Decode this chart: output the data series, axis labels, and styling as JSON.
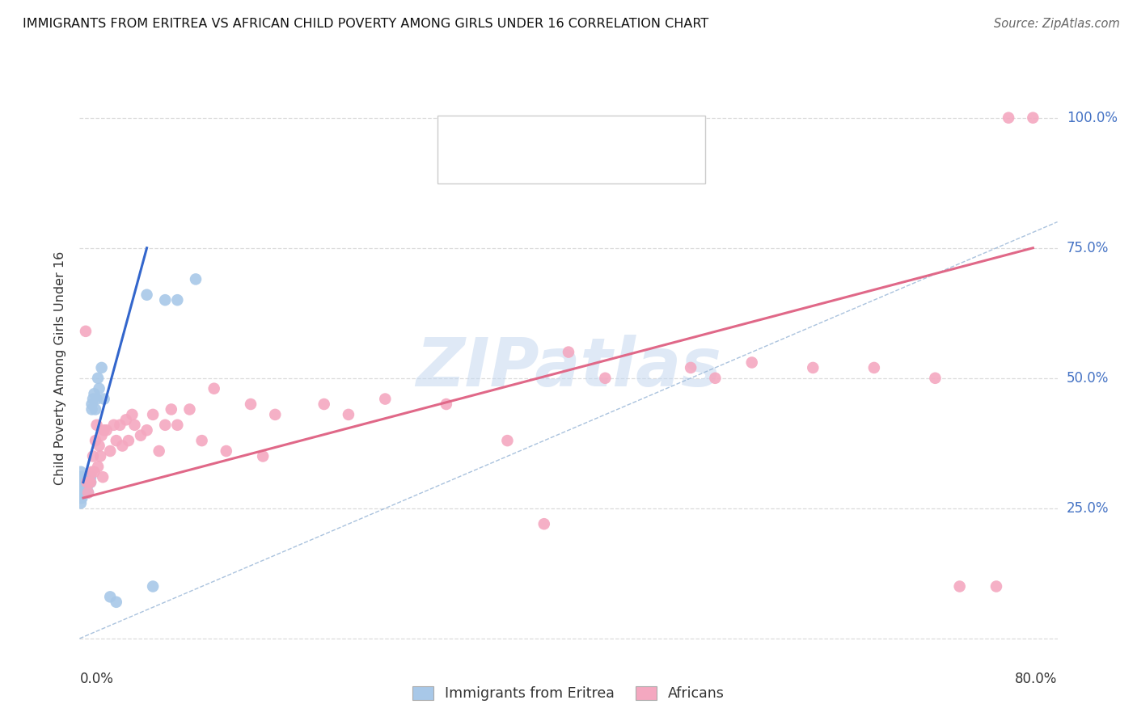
{
  "title": "IMMIGRANTS FROM ERITREA VS AFRICAN CHILD POVERTY AMONG GIRLS UNDER 16 CORRELATION CHART",
  "source": "Source: ZipAtlas.com",
  "ylabel": "Child Poverty Among Girls Under 16",
  "ytick_values": [
    0.0,
    0.25,
    0.5,
    0.75,
    1.0
  ],
  "ytick_labels": [
    "",
    "25.0%",
    "50.0%",
    "75.0%",
    "100.0%"
  ],
  "xlim": [
    0.0,
    0.8
  ],
  "ylim": [
    -0.02,
    1.06
  ],
  "color_blue": "#a8c8e8",
  "color_pink": "#f4a8c0",
  "color_blue_line": "#3366cc",
  "color_pink_line": "#e06888",
  "color_blue_tick": "#4472c4",
  "background": "#ffffff",
  "watermark_color": "#c5d8f0",
  "grid_color": "#d8d8d8",
  "ref_line_color": "#9bb8d8",
  "blue_x": [
    0.001,
    0.001,
    0.001,
    0.001,
    0.001,
    0.001,
    0.001,
    0.001,
    0.002,
    0.002,
    0.002,
    0.002,
    0.002,
    0.002,
    0.002,
    0.002,
    0.002,
    0.003,
    0.003,
    0.003,
    0.003,
    0.003,
    0.003,
    0.003,
    0.004,
    0.004,
    0.004,
    0.004,
    0.005,
    0.005,
    0.005,
    0.005,
    0.006,
    0.006,
    0.006,
    0.007,
    0.007,
    0.007,
    0.008,
    0.008,
    0.009,
    0.009,
    0.01,
    0.01,
    0.011,
    0.012,
    0.013,
    0.014,
    0.015,
    0.016,
    0.018,
    0.02,
    0.025,
    0.03,
    0.055,
    0.06,
    0.07,
    0.08,
    0.095
  ],
  "blue_y": [
    0.3,
    0.28,
    0.29,
    0.31,
    0.26,
    0.3,
    0.27,
    0.32,
    0.3,
    0.29,
    0.28,
    0.31,
    0.3,
    0.27,
    0.29,
    0.31,
    0.3,
    0.29,
    0.3,
    0.28,
    0.31,
    0.29,
    0.3,
    0.28,
    0.3,
    0.29,
    0.31,
    0.3,
    0.3,
    0.28,
    0.31,
    0.29,
    0.31,
    0.3,
    0.29,
    0.31,
    0.3,
    0.28,
    0.31,
    0.3,
    0.31,
    0.3,
    0.45,
    0.44,
    0.46,
    0.47,
    0.44,
    0.46,
    0.5,
    0.48,
    0.52,
    0.46,
    0.08,
    0.07,
    0.66,
    0.1,
    0.65,
    0.65,
    0.69
  ],
  "pink_x": [
    0.005,
    0.006,
    0.007,
    0.008,
    0.009,
    0.01,
    0.011,
    0.012,
    0.013,
    0.014,
    0.015,
    0.016,
    0.017,
    0.018,
    0.019,
    0.02,
    0.022,
    0.025,
    0.028,
    0.03,
    0.033,
    0.035,
    0.038,
    0.04,
    0.043,
    0.045,
    0.05,
    0.055,
    0.06,
    0.065,
    0.07,
    0.075,
    0.08,
    0.09,
    0.1,
    0.11,
    0.12,
    0.14,
    0.15,
    0.16,
    0.2,
    0.22,
    0.25,
    0.3,
    0.35,
    0.38,
    0.4,
    0.43,
    0.5,
    0.52,
    0.55,
    0.6,
    0.65,
    0.7,
    0.72,
    0.75,
    0.76,
    0.78
  ],
  "pink_y": [
    0.59,
    0.3,
    0.28,
    0.3,
    0.3,
    0.32,
    0.35,
    0.32,
    0.38,
    0.41,
    0.33,
    0.37,
    0.35,
    0.39,
    0.31,
    0.4,
    0.4,
    0.36,
    0.41,
    0.38,
    0.41,
    0.37,
    0.42,
    0.38,
    0.43,
    0.41,
    0.39,
    0.4,
    0.43,
    0.36,
    0.41,
    0.44,
    0.41,
    0.44,
    0.38,
    0.48,
    0.36,
    0.45,
    0.35,
    0.43,
    0.45,
    0.43,
    0.46,
    0.45,
    0.38,
    0.22,
    0.55,
    0.5,
    0.52,
    0.5,
    0.53,
    0.52,
    0.52,
    0.5,
    0.1,
    0.1,
    1.0,
    1.0
  ],
  "blue_trend": [
    0.003,
    0.3,
    0.055,
    0.75
  ],
  "pink_trend": [
    0.003,
    0.27,
    0.78,
    0.75
  ],
  "ref_diag": [
    0.0,
    0.0,
    0.8,
    0.8
  ]
}
